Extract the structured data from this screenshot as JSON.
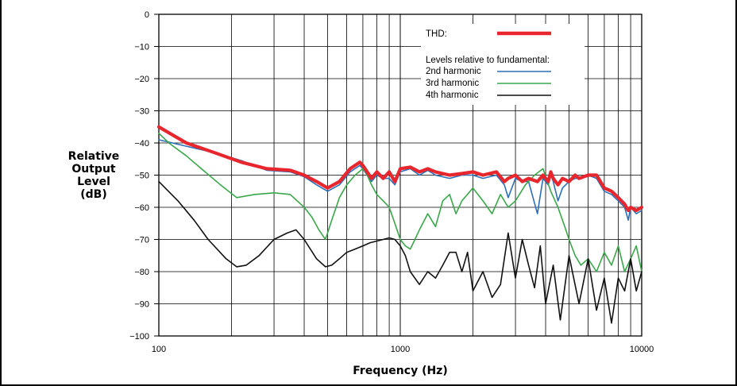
{
  "chart_data": {
    "type": "line",
    "title": "",
    "xlabel": "Frequency (Hz)",
    "ylabel_lines": [
      "Relative",
      "Output",
      "Level",
      "(dB)"
    ],
    "x_scale": "log",
    "xlim": [
      100,
      10000
    ],
    "ylim": [
      -100,
      0
    ],
    "x_ticks": [
      "100",
      "1000",
      "10000"
    ],
    "y_ticks": [
      "0",
      "−10",
      "−20",
      "−30",
      "−40",
      "−50",
      "−60",
      "−70",
      "−80",
      "−90",
      "−100"
    ],
    "grid": true,
    "legend": {
      "thd_label": "THD:",
      "subtitle": "Levels relative to fundamental:",
      "placement": "top-right"
    },
    "series": [
      {
        "name": "THD:",
        "color": "#e8262d",
        "x": [
          100,
          130,
          170,
          220,
          280,
          350,
          400,
          450,
          500,
          560,
          620,
          680,
          700,
          760,
          800,
          850,
          900,
          950,
          1000,
          1100,
          1200,
          1300,
          1400,
          1600,
          1800,
          2000,
          2200,
          2500,
          2700,
          2800,
          3000,
          3200,
          3400,
          3700,
          3900,
          4100,
          4200,
          4300,
          4500,
          4700,
          5000,
          5300,
          5500,
          6000,
          6500,
          7000,
          7500,
          8000,
          8500,
          8800,
          9000,
          9500,
          10000
        ],
        "values": [
          -35,
          -40,
          -43,
          -46,
          -48,
          -48.5,
          -50,
          -52,
          -54,
          -52,
          -48,
          -46,
          -47,
          -51,
          -49,
          -51,
          -49,
          -52,
          -48,
          -47.5,
          -49,
          -48,
          -49,
          -50,
          -49.5,
          -49,
          -50,
          -49,
          -52,
          -51,
          -50,
          -52,
          -51,
          -52,
          -50,
          -52,
          -49,
          -51,
          -53,
          -51,
          -52,
          -50,
          -51,
          -50,
          -50,
          -54,
          -55,
          -57,
          -59,
          -61,
          -60,
          -61,
          -60
        ]
      },
      {
        "name": "2nd harmonic",
        "color": "#2c6fb8",
        "x": [
          100,
          130,
          170,
          220,
          280,
          350,
          400,
          450,
          500,
          560,
          620,
          680,
          700,
          760,
          800,
          850,
          900,
          950,
          1000,
          1100,
          1200,
          1300,
          1400,
          1600,
          1800,
          2000,
          2200,
          2500,
          2700,
          2800,
          3000,
          3200,
          3400,
          3700,
          3900,
          4100,
          4200,
          4300,
          4500,
          4700,
          5000,
          5300,
          5500,
          6000,
          6500,
          7000,
          7500,
          8000,
          8500,
          8800,
          9000,
          9500,
          10000
        ],
        "values": [
          -39,
          -41,
          -43,
          -45.5,
          -48.5,
          -49,
          -50.5,
          -53,
          -55,
          -53,
          -49,
          -47,
          -48,
          -52,
          -50,
          -51,
          -51,
          -53,
          -49,
          -48,
          -50,
          -48.5,
          -50,
          -51,
          -50,
          -50,
          -51,
          -50,
          -53,
          -57,
          -51,
          -52,
          -52,
          -62,
          -51,
          -53,
          -50,
          -52,
          -58,
          -54,
          -52,
          -51,
          -51,
          -50,
          -51,
          -55,
          -56,
          -58,
          -60,
          -64,
          -60,
          -62,
          -61
        ]
      },
      {
        "name": "3rd harmonic",
        "color": "#3aa84a",
        "x": [
          100,
          110,
          130,
          150,
          180,
          210,
          250,
          300,
          350,
          400,
          430,
          460,
          490,
          520,
          560,
          600,
          650,
          700,
          720,
          760,
          800,
          850,
          900,
          950,
          1000,
          1050,
          1100,
          1150,
          1200,
          1300,
          1400,
          1500,
          1600,
          1700,
          1800,
          2000,
          2200,
          2400,
          2600,
          2800,
          3000,
          3300,
          3600,
          3900,
          4200,
          4500,
          4800,
          5000,
          5300,
          5600,
          6000,
          6500,
          7000,
          7500,
          8000,
          8500,
          9000,
          9500,
          10000
        ],
        "values": [
          -37,
          -40,
          -44,
          -48,
          -53,
          -57,
          -56,
          -55.5,
          -56,
          -60,
          -63,
          -67,
          -70,
          -64,
          -57,
          -53,
          -50,
          -48,
          -49,
          -53,
          -56,
          -58,
          -60,
          -65,
          -70,
          -72,
          -73,
          -70,
          -67,
          -62,
          -66,
          -58,
          -56,
          -62,
          -58,
          -54,
          -58,
          -62,
          -56,
          -60,
          -58,
          -53,
          -50,
          -48,
          -55,
          -60,
          -66,
          -70,
          -75,
          -78,
          -76,
          -80,
          -74,
          -78,
          -72,
          -80,
          -76,
          -72,
          -80
        ]
      },
      {
        "name": "4th harmonic",
        "color": "#111111",
        "x": [
          100,
          120,
          140,
          160,
          190,
          210,
          230,
          260,
          300,
          340,
          370,
          400,
          450,
          490,
          520,
          560,
          600,
          650,
          700,
          750,
          800,
          850,
          900,
          950,
          1000,
          1050,
          1100,
          1200,
          1300,
          1400,
          1500,
          1600,
          1700,
          1800,
          1900,
          2000,
          2200,
          2400,
          2600,
          2800,
          3000,
          3200,
          3400,
          3600,
          3800,
          4000,
          4300,
          4600,
          5000,
          5500,
          6000,
          6500,
          7000,
          7500,
          8000,
          8500,
          9000,
          9500,
          10000
        ],
        "values": [
          -52,
          -58,
          -64,
          -70,
          -76,
          -78.5,
          -78,
          -75,
          -70,
          -68,
          -67,
          -70,
          -76,
          -78.5,
          -78,
          -76,
          -74,
          -73,
          -72,
          -71,
          -70.5,
          -70,
          -69.5,
          -70,
          -72,
          -75,
          -80,
          -84,
          -80,
          -82,
          -78,
          -74,
          -74,
          -80,
          -74,
          -86,
          -80,
          -88,
          -84,
          -68,
          -82,
          -70,
          -78,
          -85,
          -72,
          -90,
          -78,
          -95,
          -75,
          -90,
          -76,
          -92,
          -82,
          -96,
          -82,
          -86,
          -76,
          -86,
          -80
        ]
      }
    ]
  }
}
